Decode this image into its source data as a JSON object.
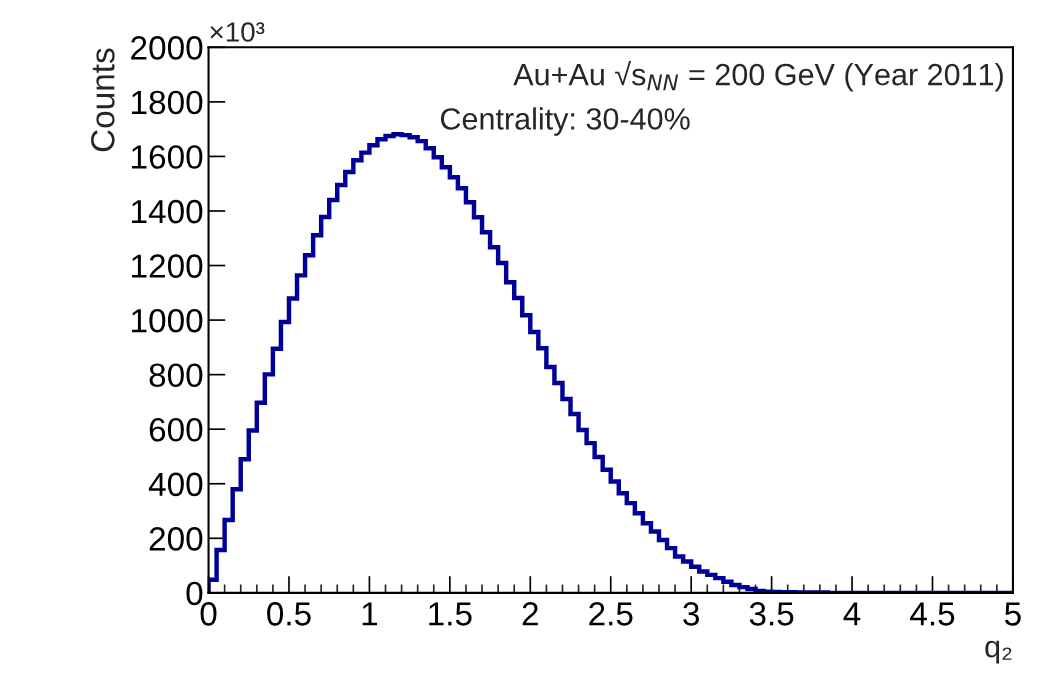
{
  "chart_data": {
    "type": "histogram",
    "xlabel": "q₂",
    "ylabel": "Counts",
    "annotations": [
      "×10³",
      "Au+Au √s$_{NN}$ = 200 GeV (Year 2011)",
      "Centrality: 30-40%"
    ],
    "bins": [
      0,
      0.05,
      0.1,
      0.15,
      0.2,
      0.25,
      0.3,
      0.35,
      0.4,
      0.45,
      0.5,
      0.55,
      0.6,
      0.65,
      0.7,
      0.75,
      0.8,
      0.85,
      0.9,
      0.95,
      1,
      1.05,
      1.1,
      1.15,
      1.2,
      1.25,
      1.3,
      1.35,
      1.4,
      1.45,
      1.5,
      1.55,
      1.6,
      1.65,
      1.7,
      1.75,
      1.8,
      1.85,
      1.9,
      1.95,
      2,
      2.05,
      2.1,
      2.15,
      2.2,
      2.25,
      2.3,
      2.35,
      2.4,
      2.45,
      2.5,
      2.55,
      2.6,
      2.65,
      2.7,
      2.75,
      2.8,
      2.85,
      2.9,
      2.95,
      3,
      3.05,
      3.1,
      3.15,
      3.2,
      3.25,
      3.3,
      3.35,
      3.4,
      3.45,
      3.5,
      3.55,
      3.6,
      3.65,
      3.7,
      3.75,
      3.8,
      3.85,
      3.9,
      3.95,
      4,
      4.05,
      4.1,
      4.15,
      4.2,
      4.25,
      4.3,
      4.35,
      4.4,
      4.45,
      4.5,
      4.55,
      4.6,
      4.65,
      4.7,
      4.75,
      4.8,
      4.85,
      4.9,
      4.95,
      5
    ],
    "values": [
      48,
      157,
      267,
      380,
      490,
      595,
      697,
      801,
      895,
      993,
      1079,
      1164,
      1238,
      1311,
      1378,
      1440,
      1495,
      1543,
      1586,
      1614,
      1641,
      1663,
      1675,
      1681,
      1678,
      1670,
      1656,
      1630,
      1597,
      1560,
      1524,
      1483,
      1432,
      1377,
      1322,
      1267,
      1209,
      1139,
      1081,
      1018,
      956,
      897,
      828,
      769,
      711,
      656,
      597,
      549,
      498,
      451,
      408,
      365,
      329,
      292,
      255,
      225,
      194,
      164,
      133,
      115,
      96,
      78,
      66,
      54,
      41,
      29,
      21,
      14,
      7,
      4,
      3,
      2,
      2,
      1,
      1,
      1,
      1,
      0,
      0,
      0,
      0,
      0,
      0,
      0,
      0,
      0,
      0,
      0,
      0,
      0,
      0,
      0,
      0,
      0,
      0,
      0,
      0,
      0,
      0,
      0
    ],
    "color": "#000099",
    "xlim": [
      0,
      5
    ],
    "xticks": [
      0,
      0.5,
      1,
      1.5,
      2,
      2.5,
      3,
      3.5,
      4,
      4.5,
      5
    ],
    "ylim": [
      0,
      2000
    ],
    "yticks": [
      0,
      200,
      400,
      600,
      800,
      1000,
      1200,
      1400,
      1600,
      1800,
      2000
    ],
    "grid": false,
    "legend": false
  }
}
